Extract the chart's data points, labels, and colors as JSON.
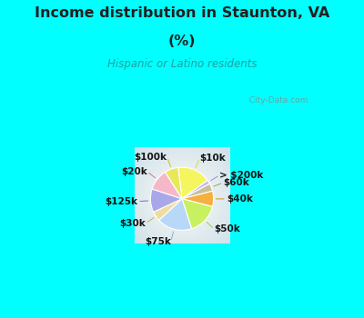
{
  "title1": "Income distribution in Staunton, VA",
  "title2": "(%)",
  "subtitle": "Hispanic or Latino residents",
  "labels": [
    "$10k",
    "> $200k",
    "$60k",
    "$40k",
    "$50k",
    "$75k",
    "$30k",
    "$125k",
    "$20k",
    "$100k"
  ],
  "values": [
    17,
    2,
    4,
    8,
    16,
    18,
    5,
    12,
    11,
    7
  ],
  "colors": [
    "#f5f560",
    "#c8b8f0",
    "#c8c098",
    "#f5b040",
    "#c8f060",
    "#b8d8f8",
    "#f0dca0",
    "#a8a8e8",
    "#f5b8c8",
    "#e8e858"
  ],
  "line_colors": [
    "#d8d840",
    "#a090d0",
    "#a0a060",
    "#d09020",
    "#a0d030",
    "#80b0e0",
    "#c0b060",
    "#7070c0",
    "#d07090",
    "#c0c020"
  ],
  "startangle": 97,
  "background_top": "#00ffff",
  "chart_bg_center": "#ffffff",
  "chart_bg_edge": "#b0e8d8",
  "title_color": "#202020",
  "subtitle_color": "#20a0a0",
  "watermark": "  City-Data.com",
  "label_fontsize": 7.5,
  "title_fontsize": 11.5
}
